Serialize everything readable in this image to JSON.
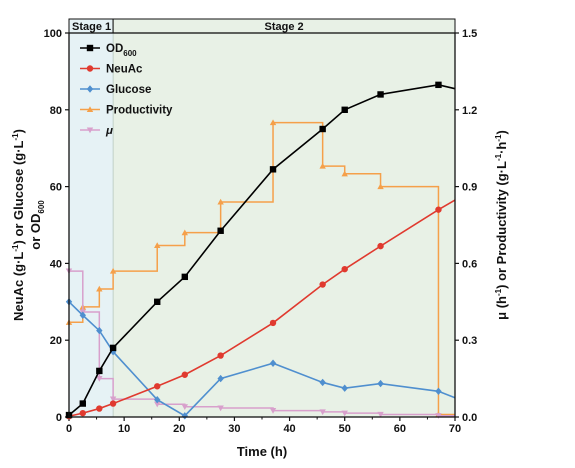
{
  "chart_data": {
    "type": "line",
    "xlabel": "Time (h)",
    "ylabel_left_parts": [
      "NeuAc (g·L",
      "-1",
      ")  or Glucose (g·L",
      "-1",
      ")",
      "or OD",
      "600"
    ],
    "ylabel_right_parts": [
      "μ (h",
      "-1",
      ") or Productivity (g·L",
      "-1",
      "·h",
      "-1",
      ")"
    ],
    "xlim": [
      0,
      70
    ],
    "ylim_left": [
      0,
      100
    ],
    "ylim_right": [
      0,
      1.5
    ],
    "x_ticks": [
      "0",
      "10",
      "20",
      "30",
      "40",
      "50",
      "60",
      "70"
    ],
    "y_ticks_left": [
      "0",
      "20",
      "40",
      "60",
      "80",
      "100"
    ],
    "y_ticks_right": [
      "0.0",
      "0.3",
      "0.6",
      "0.9",
      "1.2",
      "1.5"
    ],
    "stages": [
      {
        "label": "Stage 1",
        "x_start": 0,
        "x_end": 8,
        "color": "#e6f2f5"
      },
      {
        "label": "Stage 2",
        "x_start": 8,
        "x_end": 70,
        "color": "#e8f1e6"
      }
    ],
    "series": [
      {
        "name": "OD",
        "name_sub": "600",
        "axis": "left",
        "color": "#000000",
        "marker": "square",
        "style": "line",
        "x": [
          0,
          2.5,
          5.5,
          8,
          16,
          21,
          27.5,
          37,
          46,
          50,
          56.5,
          67,
          70
        ],
        "y": [
          0.5,
          3.5,
          12,
          18,
          30,
          36.5,
          48.5,
          64.5,
          75,
          80,
          84,
          86.5,
          85.5
        ]
      },
      {
        "name": "NeuAc",
        "axis": "left",
        "color": "#e03a2f",
        "marker": "circle",
        "style": "line",
        "x": [
          0,
          2.5,
          5.5,
          8,
          16,
          21,
          27.5,
          37,
          46,
          50,
          56.5,
          67,
          70
        ],
        "y": [
          0.2,
          1,
          2.2,
          3.5,
          8,
          11,
          16,
          24.5,
          34.5,
          38.5,
          44.5,
          54,
          56.5
        ]
      },
      {
        "name": "Glucose",
        "axis": "left",
        "color": "#4f8fcf",
        "marker": "diamond",
        "style": "line",
        "x": [
          0,
          2.5,
          5.5,
          8,
          16,
          21,
          27.5,
          37,
          46,
          50,
          56.5,
          67,
          70
        ],
        "y": [
          30,
          26.5,
          22.5,
          17,
          4.5,
          0.3,
          10,
          14,
          9,
          7.5,
          8.7,
          6.7,
          5
        ]
      },
      {
        "name": "Productivity",
        "axis": "right",
        "color": "#f5a04a",
        "marker": "triangle-up",
        "style": "step",
        "x": [
          0,
          2.5,
          5.5,
          8,
          16,
          21,
          27.5,
          37,
          46,
          50,
          56.5,
          67
        ],
        "y": [
          0.37,
          0.43,
          0.5,
          0.57,
          0.67,
          0.72,
          0.84,
          1.15,
          0.98,
          0.95,
          0.9,
          0.01
        ]
      },
      {
        "name": "μ",
        "axis": "right",
        "color": "#d8a0cc",
        "marker": "triangle-down",
        "style": "step",
        "x": [
          0,
          2.5,
          5.5,
          8,
          16,
          21,
          27.5,
          37,
          46,
          50,
          56.5,
          67
        ],
        "y": [
          0.57,
          0.41,
          0.15,
          0.07,
          0.05,
          0.04,
          0.035,
          0.025,
          0.02,
          0.015,
          0.01,
          0.005
        ]
      }
    ]
  }
}
